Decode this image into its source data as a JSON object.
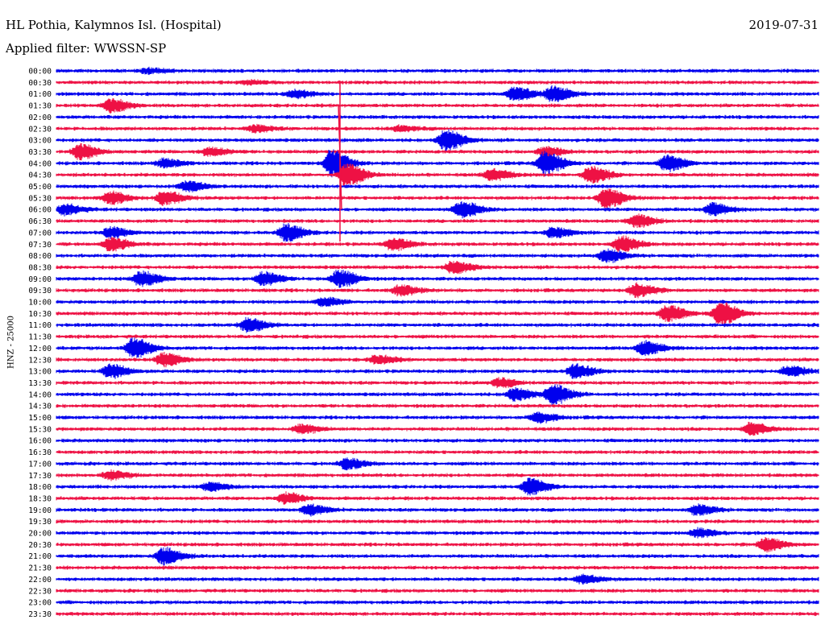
{
  "header": {
    "station": "HL Pothia, Kalymnos Isl. (Hospital)",
    "date": "2019-07-31",
    "filter": "Applied filter: WWSSN-SP"
  },
  "chart_data": {
    "type": "line",
    "title": "HL Pothia, Kalymnos Isl. (Hospital)",
    "subtitle": "Applied filter: WWSSN-SP",
    "ylabel": "HNZ - 25000",
    "xlabel": "",
    "tick_labels": [
      "00:00",
      "00:30",
      "01:00",
      "01:30",
      "02:00",
      "02:30",
      "03:00",
      "03:30",
      "04:00",
      "04:30",
      "05:00",
      "05:30",
      "06:00",
      "06:30",
      "07:00",
      "07:30",
      "08:00",
      "08:30",
      "09:00",
      "09:30",
      "10:00",
      "10:30",
      "11:00",
      "11:30",
      "12:00",
      "12:30",
      "13:00",
      "13:30",
      "14:00",
      "14:30",
      "15:00",
      "15:30",
      "16:00",
      "16:30",
      "17:00",
      "17:30",
      "18:00",
      "18:30",
      "19:00",
      "19:30",
      "20:00",
      "20:30",
      "21:00",
      "21:30",
      "22:00",
      "22:30",
      "23:00",
      "23:30"
    ],
    "trace_colors": [
      "#0000ee",
      "#ee1144"
    ],
    "grid": false,
    "events": [
      {
        "row": 0,
        "x": 0.12,
        "amp": 3
      },
      {
        "row": 1,
        "x": 0.25,
        "amp": 2
      },
      {
        "row": 2,
        "x": 0.31,
        "amp": 5
      },
      {
        "row": 2,
        "x": 0.6,
        "amp": 8
      },
      {
        "row": 2,
        "x": 0.65,
        "amp": 9
      },
      {
        "row": 3,
        "x": 0.07,
        "amp": 8
      },
      {
        "row": 5,
        "x": 0.26,
        "amp": 4
      },
      {
        "row": 5,
        "x": 0.45,
        "amp": 3
      },
      {
        "row": 6,
        "x": 0.51,
        "amp": 12
      },
      {
        "row": 7,
        "x": 0.03,
        "amp": 9
      },
      {
        "row": 7,
        "x": 0.2,
        "amp": 5
      },
      {
        "row": 7,
        "x": 0.64,
        "amp": 6
      },
      {
        "row": 8,
        "x": 0.14,
        "amp": 5
      },
      {
        "row": 8,
        "x": 0.36,
        "amp": 16
      },
      {
        "row": 8,
        "x": 0.64,
        "amp": 14
      },
      {
        "row": 8,
        "x": 0.8,
        "amp": 10
      },
      {
        "row": 9,
        "x": 0.38,
        "amp": 14
      },
      {
        "row": 9,
        "x": 0.57,
        "amp": 7
      },
      {
        "row": 9,
        "x": 0.7,
        "amp": 10
      },
      {
        "row": 10,
        "x": 0.17,
        "amp": 6
      },
      {
        "row": 11,
        "x": 0.07,
        "amp": 7
      },
      {
        "row": 11,
        "x": 0.14,
        "amp": 8
      },
      {
        "row": 11,
        "x": 0.72,
        "amp": 12
      },
      {
        "row": 12,
        "x": 0.01,
        "amp": 6
      },
      {
        "row": 12,
        "x": 0.53,
        "amp": 10
      },
      {
        "row": 12,
        "x": 0.86,
        "amp": 7
      },
      {
        "row": 13,
        "x": 0.76,
        "amp": 7
      },
      {
        "row": 14,
        "x": 0.3,
        "amp": 10
      },
      {
        "row": 14,
        "x": 0.07,
        "amp": 6
      },
      {
        "row": 14,
        "x": 0.65,
        "amp": 6
      },
      {
        "row": 15,
        "x": 0.07,
        "amp": 8
      },
      {
        "row": 15,
        "x": 0.44,
        "amp": 7
      },
      {
        "row": 15,
        "x": 0.74,
        "amp": 9
      },
      {
        "row": 16,
        "x": 0.72,
        "amp": 8
      },
      {
        "row": 17,
        "x": 0.52,
        "amp": 7
      },
      {
        "row": 18,
        "x": 0.11,
        "amp": 9
      },
      {
        "row": 18,
        "x": 0.27,
        "amp": 8
      },
      {
        "row": 18,
        "x": 0.37,
        "amp": 10
      },
      {
        "row": 19,
        "x": 0.45,
        "amp": 6
      },
      {
        "row": 19,
        "x": 0.76,
        "amp": 8
      },
      {
        "row": 20,
        "x": 0.35,
        "amp": 5
      },
      {
        "row": 21,
        "x": 0.8,
        "amp": 10
      },
      {
        "row": 21,
        "x": 0.87,
        "amp": 14
      },
      {
        "row": 22,
        "x": 0.25,
        "amp": 8
      },
      {
        "row": 24,
        "x": 0.1,
        "amp": 12
      },
      {
        "row": 24,
        "x": 0.77,
        "amp": 8
      },
      {
        "row": 25,
        "x": 0.14,
        "amp": 8
      },
      {
        "row": 25,
        "x": 0.42,
        "amp": 5
      },
      {
        "row": 26,
        "x": 0.07,
        "amp": 8
      },
      {
        "row": 26,
        "x": 0.68,
        "amp": 8
      },
      {
        "row": 26,
        "x": 0.96,
        "amp": 6
      },
      {
        "row": 27,
        "x": 0.58,
        "amp": 5
      },
      {
        "row": 28,
        "x": 0.6,
        "amp": 7
      },
      {
        "row": 28,
        "x": 0.65,
        "amp": 12
      },
      {
        "row": 30,
        "x": 0.63,
        "amp": 6
      },
      {
        "row": 31,
        "x": 0.32,
        "amp": 5
      },
      {
        "row": 31,
        "x": 0.91,
        "amp": 7
      },
      {
        "row": 34,
        "x": 0.38,
        "amp": 6
      },
      {
        "row": 35,
        "x": 0.07,
        "amp": 5
      },
      {
        "row": 36,
        "x": 0.62,
        "amp": 10
      },
      {
        "row": 36,
        "x": 0.2,
        "amp": 5
      },
      {
        "row": 37,
        "x": 0.3,
        "amp": 6
      },
      {
        "row": 38,
        "x": 0.33,
        "amp": 6
      },
      {
        "row": 38,
        "x": 0.84,
        "amp": 6
      },
      {
        "row": 40,
        "x": 0.84,
        "amp": 5
      },
      {
        "row": 41,
        "x": 0.93,
        "amp": 8
      },
      {
        "row": 42,
        "x": 0.14,
        "amp": 10
      },
      {
        "row": 44,
        "x": 0.69,
        "amp": 5
      }
    ]
  }
}
